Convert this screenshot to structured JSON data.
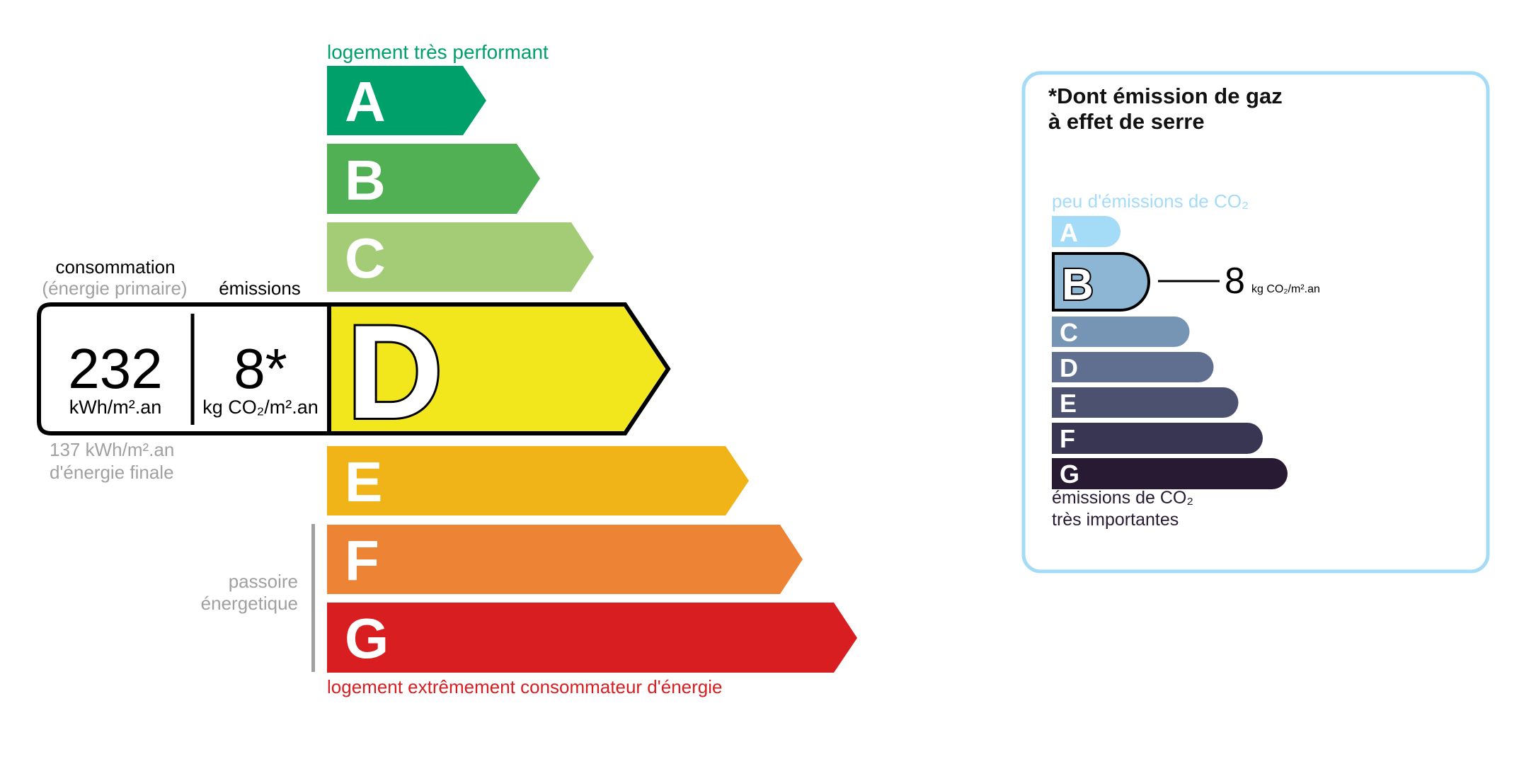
{
  "energy_label": {
    "top_caption": "logement très performant",
    "bottom_caption": "logement extrêmement consommateur d'énergie",
    "passoire": [
      "passoire",
      "énergetique"
    ],
    "classes": [
      {
        "letter": "A",
        "color": "#00a06a"
      },
      {
        "letter": "B",
        "color": "#52b054"
      },
      {
        "letter": "C",
        "color": "#a4cc76"
      },
      {
        "letter": "D",
        "color": "#f2e61c"
      },
      {
        "letter": "E",
        "color": "#f0b419"
      },
      {
        "letter": "F",
        "color": "#ec8335"
      },
      {
        "letter": "G",
        "color": "#d81e21"
      }
    ],
    "selected_class": "D",
    "consumption_header": "consommation",
    "consumption_subheader": "(énergie primaire)",
    "emissions_header": "émissions",
    "consumption_value": "232",
    "consumption_unit": "kWh/m².an",
    "emissions_value": "8*",
    "emissions_unit": "kg CO₂/m².an",
    "final_energy": [
      "137 kWh/m².an",
      "d'énergie finale"
    ],
    "top_caption_color": "#00a06a",
    "bottom_caption_color": "#d81e21"
  },
  "ges_panel": {
    "title": [
      "*Dont émission de gaz",
      "à effet de serre"
    ],
    "top_caption": "peu d'émissions de CO₂",
    "bottom_caption": [
      "émissions de CO₂",
      "très importantes"
    ],
    "classes": [
      {
        "letter": "A",
        "color": "#a4dbf7"
      },
      {
        "letter": "B",
        "color": "#8db5d4"
      },
      {
        "letter": "C",
        "color": "#7694b3"
      },
      {
        "letter": "D",
        "color": "#606f90"
      },
      {
        "letter": "E",
        "color": "#4d5170"
      },
      {
        "letter": "F",
        "color": "#393653"
      },
      {
        "letter": "G",
        "color": "#291a34"
      }
    ],
    "selected_class": "B",
    "value": "8",
    "unit": "kg CO₂/m².an",
    "border_color": "#a4dbf7"
  }
}
